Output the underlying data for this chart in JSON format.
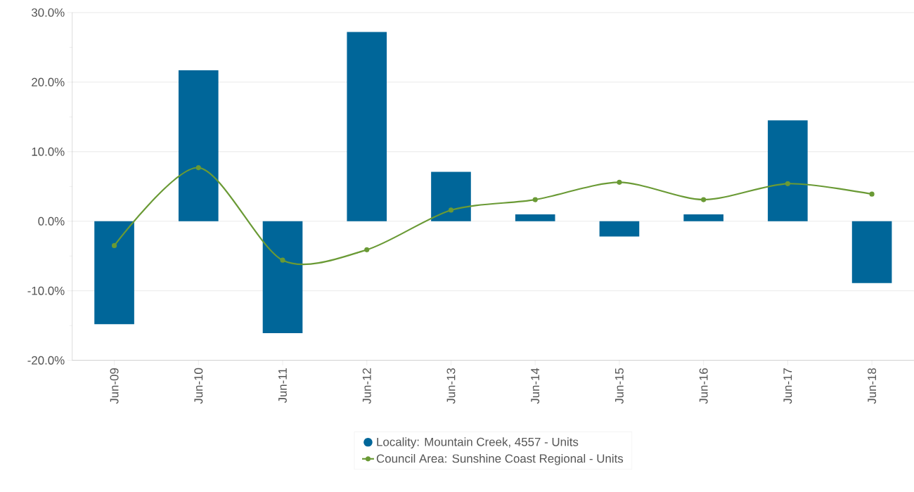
{
  "chart_data": {
    "type": "bar",
    "categories": [
      "Jun-09",
      "Jun-10",
      "Jun-11",
      "Jun-12",
      "Jun-13",
      "Jun-14",
      "Jun-15",
      "Jun-16",
      "Jun-17",
      "Jun-18"
    ],
    "series": [
      {
        "name": "Locality: Mountain Creek, 4557 - Units",
        "color": "#006699",
        "values": [
          -14.8,
          21.7,
          -16.1,
          27.2,
          7.1,
          1.0,
          -2.2,
          1.0,
          14.5,
          -8.9
        ]
      },
      {
        "name": "Council Area: Sunshine Coast Regional - Units",
        "type": "line",
        "marker": "circle",
        "color": "#6a9a35",
        "values": [
          -3.5,
          7.7,
          -5.6,
          -4.1,
          1.6,
          3.1,
          5.6,
          3.1,
          5.4,
          3.9
        ]
      }
    ],
    "ylim": [
      -20,
      30
    ],
    "yticks": [
      {
        "value": -20,
        "label": "-20.0%"
      },
      {
        "value": -10,
        "label": "-10.0%"
      },
      {
        "value": 0,
        "label": "0.0%"
      },
      {
        "value": 10,
        "label": "10.0%"
      },
      {
        "value": 20,
        "label": "20.0%"
      },
      {
        "value": 30,
        "label": "30.0%"
      }
    ],
    "grid": "y",
    "legend": "bottom"
  }
}
